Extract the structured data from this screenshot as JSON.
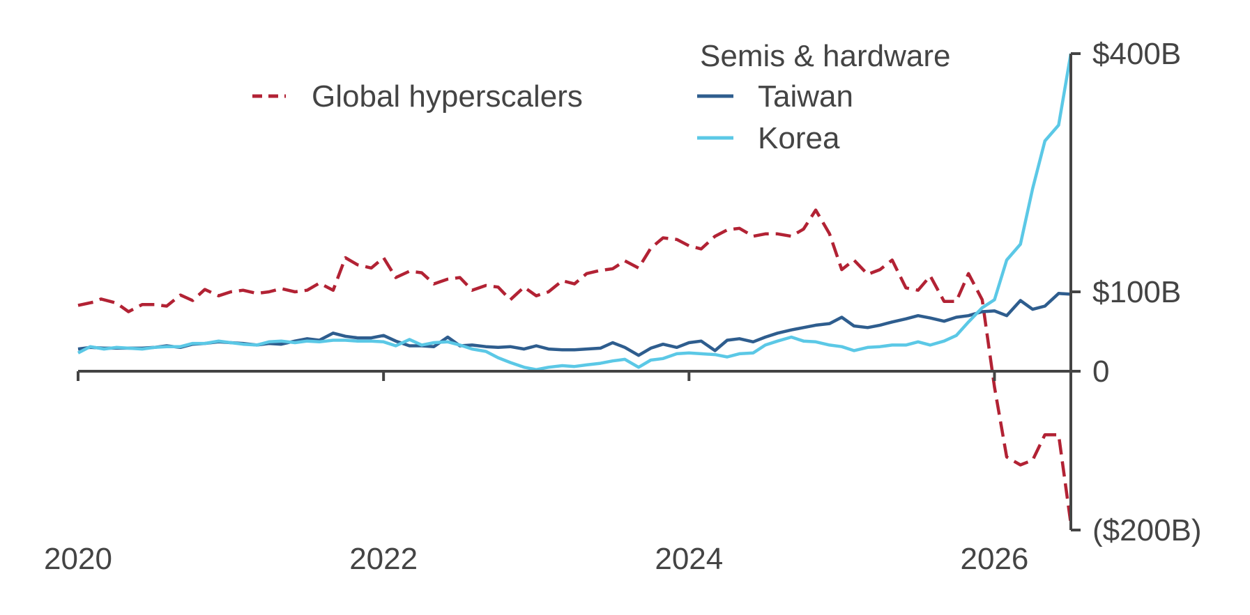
{
  "chart_data": {
    "type": "line",
    "title": "",
    "xlabel": "",
    "ylabel": "",
    "x_ticks": [
      {
        "value": 2020,
        "label": "2020"
      },
      {
        "value": 2022,
        "label": "2022"
      },
      {
        "value": 2024,
        "label": "2024"
      },
      {
        "value": 2026,
        "label": "2026"
      }
    ],
    "y_ticks": [
      {
        "value": 400,
        "label": "$400B"
      },
      {
        "value": 100,
        "label": "$100B"
      },
      {
        "value": 0,
        "label": "0"
      },
      {
        "value": -200,
        "label": "($200B)"
      }
    ],
    "xlim": [
      2020,
      2026.5
    ],
    "ylim": [
      -200,
      400
    ],
    "y_axis_side": "right",
    "grid": false,
    "legend": {
      "group_title": "Semis & hardware",
      "entries": [
        {
          "series": "Global hyperscalers",
          "style": "dashed"
        },
        {
          "series": "Taiwan",
          "style": "solid"
        },
        {
          "series": "Korea",
          "style": "solid"
        }
      ]
    },
    "series": [
      {
        "name": "Global hyperscalers",
        "color": "#B22234",
        "dashed": true,
        "points": [
          [
            2020.0,
            83
          ],
          [
            2020.1,
            87
          ],
          [
            2020.15,
            91
          ],
          [
            2020.25,
            86
          ],
          [
            2020.33,
            75
          ],
          [
            2020.42,
            84
          ],
          [
            2020.5,
            84
          ],
          [
            2020.58,
            82
          ],
          [
            2020.67,
            96
          ],
          [
            2020.75,
            89
          ],
          [
            2020.83,
            103
          ],
          [
            2020.92,
            95
          ],
          [
            2021.0,
            100
          ],
          [
            2021.08,
            102
          ],
          [
            2021.17,
            98
          ],
          [
            2021.25,
            100
          ],
          [
            2021.33,
            104
          ],
          [
            2021.42,
            100
          ],
          [
            2021.5,
            102
          ],
          [
            2021.58,
            111
          ],
          [
            2021.67,
            102
          ],
          [
            2021.75,
            143
          ],
          [
            2021.83,
            134
          ],
          [
            2021.92,
            130
          ],
          [
            2022.0,
            143
          ],
          [
            2022.08,
            118
          ],
          [
            2022.17,
            126
          ],
          [
            2022.25,
            124
          ],
          [
            2022.33,
            110
          ],
          [
            2022.42,
            116
          ],
          [
            2022.5,
            118
          ],
          [
            2022.58,
            102
          ],
          [
            2022.67,
            108
          ],
          [
            2022.75,
            106
          ],
          [
            2022.83,
            90
          ],
          [
            2022.92,
            106
          ],
          [
            2023.0,
            95
          ],
          [
            2023.08,
            100
          ],
          [
            2023.17,
            114
          ],
          [
            2023.25,
            110
          ],
          [
            2023.33,
            123
          ],
          [
            2023.42,
            127
          ],
          [
            2023.5,
            129
          ],
          [
            2023.58,
            139
          ],
          [
            2023.67,
            130
          ],
          [
            2023.75,
            155
          ],
          [
            2023.83,
            168
          ],
          [
            2023.92,
            166
          ],
          [
            2024.0,
            158
          ],
          [
            2024.08,
            154
          ],
          [
            2024.17,
            170
          ],
          [
            2024.25,
            178
          ],
          [
            2024.33,
            180
          ],
          [
            2024.42,
            170
          ],
          [
            2024.5,
            173
          ],
          [
            2024.58,
            173
          ],
          [
            2024.67,
            170
          ],
          [
            2024.75,
            179
          ],
          [
            2024.83,
            203
          ],
          [
            2024.92,
            173
          ],
          [
            2025.0,
            128
          ],
          [
            2025.08,
            140
          ],
          [
            2025.17,
            122
          ],
          [
            2025.25,
            128
          ],
          [
            2025.33,
            140
          ],
          [
            2025.42,
            105
          ],
          [
            2025.5,
            102
          ],
          [
            2025.58,
            120
          ],
          [
            2025.67,
            88
          ],
          [
            2025.75,
            88
          ],
          [
            2025.83,
            123
          ],
          [
            2025.92,
            90
          ],
          [
            2026.0,
            -20
          ],
          [
            2026.08,
            -108
          ],
          [
            2026.17,
            -118
          ],
          [
            2026.25,
            -112
          ],
          [
            2026.33,
            -80
          ],
          [
            2026.42,
            -80
          ],
          [
            2026.5,
            -192
          ]
        ]
      },
      {
        "name": "Taiwan",
        "color": "#2E5D8E",
        "dashed": false,
        "points": [
          [
            2020.0,
            28
          ],
          [
            2020.08,
            30
          ],
          [
            2020.17,
            29
          ],
          [
            2020.25,
            29
          ],
          [
            2020.33,
            29
          ],
          [
            2020.42,
            29
          ],
          [
            2020.5,
            30
          ],
          [
            2020.58,
            32
          ],
          [
            2020.67,
            30
          ],
          [
            2020.75,
            34
          ],
          [
            2020.83,
            35
          ],
          [
            2020.92,
            37
          ],
          [
            2021.0,
            36
          ],
          [
            2021.08,
            35
          ],
          [
            2021.17,
            33
          ],
          [
            2021.25,
            35
          ],
          [
            2021.33,
            34
          ],
          [
            2021.42,
            38
          ],
          [
            2021.5,
            41
          ],
          [
            2021.58,
            39
          ],
          [
            2021.67,
            48
          ],
          [
            2021.75,
            44
          ],
          [
            2021.83,
            42
          ],
          [
            2021.92,
            42
          ],
          [
            2022.0,
            45
          ],
          [
            2022.08,
            38
          ],
          [
            2022.17,
            32
          ],
          [
            2022.25,
            32
          ],
          [
            2022.33,
            31
          ],
          [
            2022.42,
            43
          ],
          [
            2022.5,
            32
          ],
          [
            2022.58,
            33
          ],
          [
            2022.67,
            31
          ],
          [
            2022.75,
            30
          ],
          [
            2022.83,
            31
          ],
          [
            2022.92,
            28
          ],
          [
            2023.0,
            32
          ],
          [
            2023.08,
            28
          ],
          [
            2023.17,
            27
          ],
          [
            2023.25,
            27
          ],
          [
            2023.33,
            28
          ],
          [
            2023.42,
            29
          ],
          [
            2023.5,
            36
          ],
          [
            2023.58,
            30
          ],
          [
            2023.67,
            20
          ],
          [
            2023.75,
            29
          ],
          [
            2023.83,
            34
          ],
          [
            2023.92,
            30
          ],
          [
            2024.0,
            36
          ],
          [
            2024.08,
            38
          ],
          [
            2024.17,
            26
          ],
          [
            2024.25,
            39
          ],
          [
            2024.33,
            41
          ],
          [
            2024.42,
            37
          ],
          [
            2024.5,
            43
          ],
          [
            2024.58,
            48
          ],
          [
            2024.67,
            52
          ],
          [
            2024.75,
            55
          ],
          [
            2024.83,
            58
          ],
          [
            2024.92,
            60
          ],
          [
            2025.0,
            68
          ],
          [
            2025.08,
            57
          ],
          [
            2025.17,
            55
          ],
          [
            2025.25,
            58
          ],
          [
            2025.33,
            62
          ],
          [
            2025.42,
            66
          ],
          [
            2025.5,
            70
          ],
          [
            2025.58,
            67
          ],
          [
            2025.67,
            63
          ],
          [
            2025.75,
            68
          ],
          [
            2025.83,
            70
          ],
          [
            2025.92,
            75
          ],
          [
            2026.0,
            76
          ],
          [
            2026.08,
            70
          ],
          [
            2026.17,
            89
          ],
          [
            2026.25,
            78
          ],
          [
            2026.33,
            82
          ],
          [
            2026.42,
            98
          ],
          [
            2026.5,
            97
          ]
        ]
      },
      {
        "name": "Korea",
        "color": "#5BC8E6",
        "dashed": false,
        "points": [
          [
            2020.0,
            23
          ],
          [
            2020.08,
            31
          ],
          [
            2020.17,
            28
          ],
          [
            2020.25,
            30
          ],
          [
            2020.33,
            29
          ],
          [
            2020.42,
            28
          ],
          [
            2020.5,
            30
          ],
          [
            2020.58,
            31
          ],
          [
            2020.67,
            31
          ],
          [
            2020.75,
            35
          ],
          [
            2020.83,
            35
          ],
          [
            2020.92,
            38
          ],
          [
            2021.0,
            36
          ],
          [
            2021.08,
            34
          ],
          [
            2021.17,
            33
          ],
          [
            2021.25,
            37
          ],
          [
            2021.33,
            38
          ],
          [
            2021.42,
            36
          ],
          [
            2021.5,
            38
          ],
          [
            2021.58,
            37
          ],
          [
            2021.67,
            39
          ],
          [
            2021.75,
            39
          ],
          [
            2021.83,
            38
          ],
          [
            2021.92,
            38
          ],
          [
            2022.0,
            37
          ],
          [
            2022.08,
            32
          ],
          [
            2022.17,
            40
          ],
          [
            2022.25,
            33
          ],
          [
            2022.33,
            36
          ],
          [
            2022.42,
            37
          ],
          [
            2022.5,
            33
          ],
          [
            2022.58,
            28
          ],
          [
            2022.67,
            25
          ],
          [
            2022.75,
            17
          ],
          [
            2022.83,
            11
          ],
          [
            2022.92,
            5
          ],
          [
            2023.0,
            2
          ],
          [
            2023.08,
            5
          ],
          [
            2023.17,
            7
          ],
          [
            2023.25,
            6
          ],
          [
            2023.33,
            8
          ],
          [
            2023.42,
            10
          ],
          [
            2023.5,
            13
          ],
          [
            2023.58,
            15
          ],
          [
            2023.67,
            5
          ],
          [
            2023.75,
            14
          ],
          [
            2023.83,
            16
          ],
          [
            2023.92,
            22
          ],
          [
            2024.0,
            23
          ],
          [
            2024.08,
            22
          ],
          [
            2024.17,
            21
          ],
          [
            2024.25,
            18
          ],
          [
            2024.33,
            22
          ],
          [
            2024.42,
            23
          ],
          [
            2024.5,
            33
          ],
          [
            2024.58,
            38
          ],
          [
            2024.67,
            43
          ],
          [
            2024.75,
            38
          ],
          [
            2024.83,
            37
          ],
          [
            2024.92,
            33
          ],
          [
            2025.0,
            31
          ],
          [
            2025.08,
            26
          ],
          [
            2025.17,
            30
          ],
          [
            2025.25,
            31
          ],
          [
            2025.33,
            33
          ],
          [
            2025.42,
            33
          ],
          [
            2025.5,
            37
          ],
          [
            2025.58,
            33
          ],
          [
            2025.67,
            38
          ],
          [
            2025.75,
            45
          ],
          [
            2025.83,
            62
          ],
          [
            2025.92,
            80
          ],
          [
            2026.0,
            90
          ],
          [
            2026.08,
            140
          ],
          [
            2026.17,
            160
          ],
          [
            2026.25,
            230
          ],
          [
            2026.33,
            290
          ],
          [
            2026.42,
            310
          ],
          [
            2026.5,
            400
          ]
        ]
      }
    ]
  }
}
